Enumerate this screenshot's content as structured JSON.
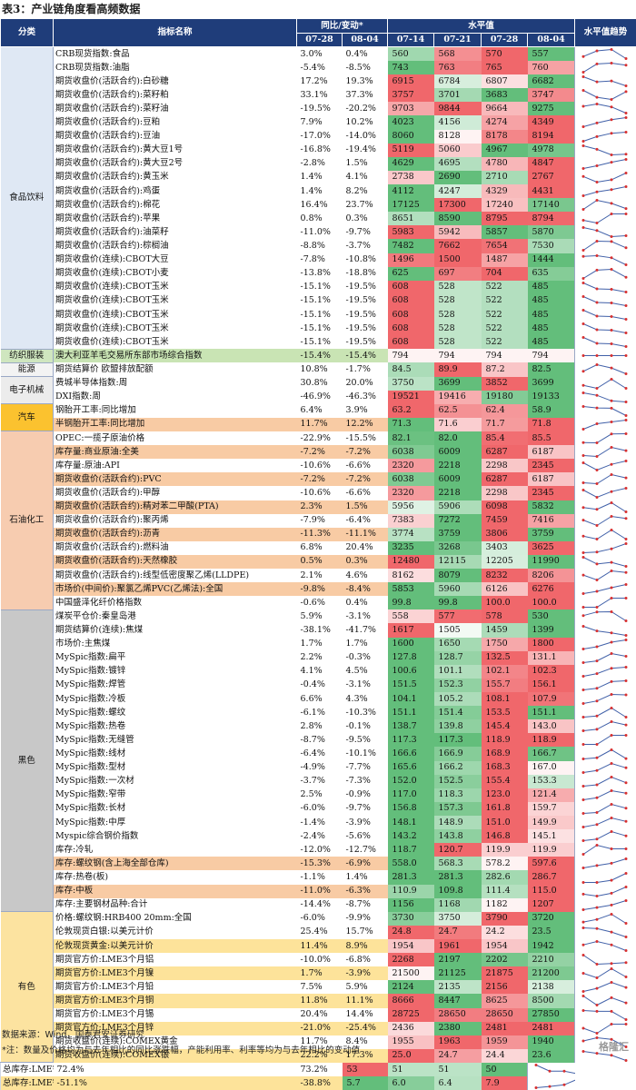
{
  "title": "表3：产业链角度看高频数据",
  "header": {
    "cat": "分类",
    "name": "指标名称",
    "yoy": "同比/变动*",
    "level": "水平值",
    "trend": "水平值趋势",
    "yoy_dates": [
      "07-28",
      "08-04"
    ],
    "level_dates": [
      "07-14",
      "07-21",
      "07-28",
      "08-04"
    ]
  },
  "colors": {
    "header_bg": "#1f3d7a",
    "hl_orange": "#f8cba4",
    "hl_yellow": "#fde39a",
    "hl_green": "#c9e4b4",
    "high_red": "#f0676b",
    "low_green": "#63be7b",
    "trend_line": "#4060a8",
    "trend_dot": "#d93030"
  },
  "categories": [
    {
      "name": "食品饮料",
      "rows": 22,
      "bg": "#dfe8f4"
    },
    {
      "name": "纺织服装",
      "rows": 1,
      "bg": "#cfe6bf"
    },
    {
      "name": "能源",
      "rows": 1,
      "bg": "#f3f3f3"
    },
    {
      "name": "电子机械",
      "rows": 2,
      "bg": "#ececec"
    },
    {
      "name": "汽车",
      "rows": 2,
      "bg": "#fbc22f"
    },
    {
      "name": "石油化工",
      "rows": 13,
      "bg": "#f7ccb0"
    },
    {
      "name": "黑色",
      "rows": 22,
      "bg": "#c8c8c8"
    },
    {
      "name": "有色",
      "rows": 11,
      "bg": "#fce3a0"
    }
  ],
  "rows": [
    {
      "name": "CRB现货指数:食品",
      "yoy": [
        "3.0%",
        "0.4%"
      ],
      "lv": [
        "560",
        "568",
        "570",
        "557"
      ]
    },
    {
      "name": "CRB现货指数:油脂",
      "yoy": [
        "-5.4%",
        "-8.5%"
      ],
      "lv": [
        "743",
        "763",
        "765",
        "760"
      ]
    },
    {
      "name": "期货收盘价(活跃合约):白砂糖",
      "yoy": [
        "17.2%",
        "19.3%"
      ],
      "lv": [
        "6915",
        "6784",
        "6807",
        "6682"
      ]
    },
    {
      "name": "期货收盘价(活跃合约):菜籽粕",
      "yoy": [
        "33.1%",
        "37.3%"
      ],
      "lv": [
        "3757",
        "3701",
        "3683",
        "3747"
      ]
    },
    {
      "name": "期货收盘价(活跃合约):菜籽油",
      "yoy": [
        "-19.5%",
        "-20.2%"
      ],
      "lv": [
        "9703",
        "9844",
        "9664",
        "9275"
      ]
    },
    {
      "name": "期货收盘价(活跃合约):豆粕",
      "yoy": [
        "7.9%",
        "10.2%"
      ],
      "lv": [
        "4023",
        "4156",
        "4274",
        "4349"
      ]
    },
    {
      "name": "期货收盘价(活跃合约):豆油",
      "yoy": [
        "-17.0%",
        "-14.0%"
      ],
      "lv": [
        "8060",
        "8128",
        "8178",
        "8194"
      ]
    },
    {
      "name": "期货收盘价(活跃合约):黄大豆1号",
      "yoy": [
        "-16.8%",
        "-19.4%"
      ],
      "lv": [
        "5119",
        "5060",
        "4967",
        "4978"
      ]
    },
    {
      "name": "期货收盘价(活跃合约):黄大豆2号",
      "yoy": [
        "-2.8%",
        "1.5%"
      ],
      "lv": [
        "4629",
        "4695",
        "4780",
        "4847"
      ]
    },
    {
      "name": "期货收盘价(活跃合约):黄玉米",
      "yoy": [
        "1.4%",
        "4.1%"
      ],
      "lv": [
        "2738",
        "2690",
        "2710",
        "2767"
      ]
    },
    {
      "name": "期货收盘价(活跃合约):鸡蛋",
      "yoy": [
        "1.4%",
        "8.2%"
      ],
      "lv": [
        "4112",
        "4247",
        "4329",
        "4431"
      ]
    },
    {
      "name": "期货收盘价(活跃合约):棉花",
      "yoy": [
        "16.4%",
        "23.7%"
      ],
      "lv": [
        "17125",
        "17300",
        "17240",
        "17140"
      ]
    },
    {
      "name": "期货收盘价(活跃合约):苹果",
      "yoy": [
        "0.8%",
        "0.3%"
      ],
      "lv": [
        "8651",
        "8590",
        "8795",
        "8794"
      ]
    },
    {
      "name": "期货收盘价(活跃合约):油菜籽",
      "yoy": [
        "-11.0%",
        "-9.7%"
      ],
      "lv": [
        "5983",
        "5942",
        "5857",
        "5870"
      ]
    },
    {
      "name": "期货收盘价(活跃合约):棕榈油",
      "yoy": [
        "-8.8%",
        "-3.7%"
      ],
      "lv": [
        "7482",
        "7662",
        "7654",
        "7530"
      ]
    },
    {
      "name": "期货收盘价(连续):CBOT大豆",
      "yoy": [
        "-7.8%",
        "-10.8%"
      ],
      "lv": [
        "1496",
        "1500",
        "1487",
        "1444"
      ]
    },
    {
      "name": "期货收盘价(连续):CBOT小麦",
      "yoy": [
        "-13.8%",
        "-18.8%"
      ],
      "lv": [
        "625",
        "697",
        "704",
        "635"
      ]
    },
    {
      "name": "期货收盘价(连续):CBOT玉米",
      "yoy": [
        "-15.1%",
        "-19.5%"
      ],
      "lv": [
        "608",
        "528",
        "522",
        "485"
      ]
    },
    {
      "name": "期货收盘价(连续):CBOT玉米",
      "yoy": [
        "-15.1%",
        "-19.5%"
      ],
      "lv": [
        "608",
        "528",
        "522",
        "485"
      ]
    },
    {
      "name": "期货收盘价(连续):CBOT玉米",
      "yoy": [
        "-15.1%",
        "-19.5%"
      ],
      "lv": [
        "608",
        "528",
        "522",
        "485"
      ]
    },
    {
      "name": "期货收盘价(连续):CBOT玉米",
      "yoy": [
        "-15.1%",
        "-19.5%"
      ],
      "lv": [
        "608",
        "528",
        "522",
        "485"
      ]
    },
    {
      "name": "期货收盘价(连续):CBOT玉米",
      "yoy": [
        "-15.1%",
        "-19.5%"
      ],
      "lv": [
        "608",
        "528",
        "522",
        "485"
      ]
    },
    {
      "name": "澳大利亚羊毛交易所东部市场综合指数",
      "yoy": [
        "-15.4%",
        "-15.4%"
      ],
      "lv": [
        "794",
        "794",
        "794",
        "794"
      ],
      "hl": "green"
    },
    {
      "name": "期货结算价 欧盟排放配额",
      "yoy": [
        "10.8%",
        "-1.7%"
      ],
      "lv": [
        "84.5",
        "89.9",
        "87.2",
        "82.5"
      ]
    },
    {
      "name": "费城半导体指数:周",
      "yoy": [
        "30.8%",
        "20.0%"
      ],
      "lv": [
        "3750",
        "3699",
        "3852",
        "3699"
      ]
    },
    {
      "name": "DXI指数:周",
      "yoy": [
        "-46.9%",
        "-46.3%"
      ],
      "lv": [
        "19521",
        "19416",
        "19180",
        "19133"
      ]
    },
    {
      "name": "钢胎开工率:同比增加",
      "yoy": [
        "6.4%",
        "3.9%"
      ],
      "lv": [
        "63.2",
        "62.5",
        "62.4",
        "58.9"
      ]
    },
    {
      "name": "半钢胎开工率:同比增加",
      "yoy": [
        "11.7%",
        "12.2%"
      ],
      "lv": [
        "71.3",
        "71.6",
        "71.7",
        "71.8"
      ],
      "hl": "orange"
    },
    {
      "name": "OPEC:一揽子原油价格",
      "yoy": [
        "-22.9%",
        "-15.5%"
      ],
      "lv": [
        "82.1",
        "82.0",
        "85.4",
        "85.5"
      ]
    },
    {
      "name": "库存量:商业原油:全美",
      "yoy": [
        "-7.2%",
        "-7.2%"
      ],
      "lv": [
        "6038",
        "6009",
        "6287",
        "6187"
      ],
      "hl": "orange"
    },
    {
      "name": "库存量:原油:API",
      "yoy": [
        "-10.6%",
        "-6.6%"
      ],
      "lv": [
        "2320",
        "2218",
        "2298",
        "2345"
      ]
    },
    {
      "name": "期货收盘价(活跃合约):PVC",
      "yoy": [
        "-7.2%",
        "-7.2%"
      ],
      "lv": [
        "6038",
        "6009",
        "6287",
        "6187"
      ],
      "hl": "orange"
    },
    {
      "name": "期货收盘价(活跃合约):甲醇",
      "yoy": [
        "-10.6%",
        "-6.6%"
      ],
      "lv": [
        "2320",
        "2218",
        "2298",
        "2345"
      ]
    },
    {
      "name": "期货收盘价(活跃合约):精对苯二甲酸(PTA)",
      "yoy": [
        "2.3%",
        "1.5%"
      ],
      "lv": [
        "5956",
        "5906",
        "6098",
        "5832"
      ],
      "hl": "orange"
    },
    {
      "name": "期货收盘价(活跃合约):聚丙烯",
      "yoy": [
        "-7.9%",
        "-6.4%"
      ],
      "lv": [
        "7383",
        "7272",
        "7459",
        "7416"
      ]
    },
    {
      "name": "期货收盘价(活跃合约):沥青",
      "yoy": [
        "-11.3%",
        "-11.1%"
      ],
      "lv": [
        "3774",
        "3759",
        "3806",
        "3759"
      ],
      "hl": "orange"
    },
    {
      "name": "期货收盘价(活跃合约):燃料油",
      "yoy": [
        "6.8%",
        "20.4%"
      ],
      "lv": [
        "3235",
        "3268",
        "3403",
        "3625"
      ]
    },
    {
      "name": "期货收盘价(活跃合约):天然橡胶",
      "yoy": [
        "0.5%",
        "0.3%"
      ],
      "lv": [
        "12480",
        "12115",
        "12205",
        "11990"
      ],
      "hl": "orange"
    },
    {
      "name": "期货收盘价(活跃合约):线型低密度聚乙烯(LLDPE)",
      "yoy": [
        "2.1%",
        "4.6%"
      ],
      "lv": [
        "8162",
        "8079",
        "8232",
        "8206"
      ]
    },
    {
      "name": "市场价(中间价):聚氯乙烯PVC(乙烯法):全国",
      "yoy": [
        "-9.8%",
        "-8.4%"
      ],
      "lv": [
        "5853",
        "5960",
        "6126",
        "6276"
      ],
      "hl": "orange"
    },
    {
      "name": "中国盛泽化纤价格指数",
      "yoy": [
        "-0.6%",
        "0.4%"
      ],
      "lv": [
        "99.8",
        "99.8",
        "100.0",
        "100.0"
      ]
    },
    {
      "name": "煤炭平仓价:秦皇岛港",
      "yoy": [
        "5.9%",
        "-3.1%"
      ],
      "lv": [
        "558",
        "577",
        "578",
        "530"
      ]
    },
    {
      "name": "期货结算价(连续):焦煤",
      "yoy": [
        "-38.1%",
        "-41.7%"
      ],
      "lv": [
        "1617",
        "1505",
        "1459",
        "1399"
      ]
    },
    {
      "name": "市场价:主焦煤",
      "yoy": [
        "1.7%",
        "1.7%"
      ],
      "lv": [
        "1600",
        "1650",
        "1750",
        "1800"
      ]
    },
    {
      "name": "MySpic指数:扁平",
      "yoy": [
        "2.2%",
        "-0.3%"
      ],
      "lv": [
        "127.8",
        "128.7",
        "132.5",
        "131.1"
      ]
    },
    {
      "name": "MySpic指数:镀锌",
      "yoy": [
        "4.1%",
        "4.5%"
      ],
      "lv": [
        "100.6",
        "101.1",
        "102.1",
        "102.3"
      ]
    },
    {
      "name": "MySpic指数:焊管",
      "yoy": [
        "-0.4%",
        "-3.1%"
      ],
      "lv": [
        "151.5",
        "152.3",
        "155.7",
        "156.1"
      ]
    },
    {
      "name": "MySpic指数:冷板",
      "yoy": [
        "6.6%",
        "4.3%"
      ],
      "lv": [
        "104.1",
        "105.2",
        "108.1",
        "107.9"
      ]
    },
    {
      "name": "MySpic指数:螺纹",
      "yoy": [
        "-6.1%",
        "-10.3%"
      ],
      "lv": [
        "151.1",
        "151.4",
        "153.5",
        "151.1"
      ]
    },
    {
      "name": "MySpic指数:热卷",
      "yoy": [
        "2.8%",
        "-0.1%"
      ],
      "lv": [
        "138.7",
        "139.8",
        "145.4",
        "143.0"
      ]
    },
    {
      "name": "MySpic指数:无缝管",
      "yoy": [
        "-8.7%",
        "-9.5%"
      ],
      "lv": [
        "117.3",
        "117.3",
        "118.9",
        "118.9"
      ]
    },
    {
      "name": "MySpic指数:线材",
      "yoy": [
        "-6.4%",
        "-10.1%"
      ],
      "lv": [
        "166.6",
        "166.9",
        "168.9",
        "166.7"
      ]
    },
    {
      "name": "MySpic指数:型材",
      "yoy": [
        "-4.9%",
        "-7.7%"
      ],
      "lv": [
        "165.6",
        "166.2",
        "168.3",
        "167.0"
      ]
    },
    {
      "name": "MySpic指数:一次材",
      "yoy": [
        "-3.7%",
        "-7.3%"
      ],
      "lv": [
        "152.0",
        "152.5",
        "155.4",
        "153.3"
      ]
    },
    {
      "name": "MySpic指数:窄带",
      "yoy": [
        "2.5%",
        "-0.9%"
      ],
      "lv": [
        "117.0",
        "118.3",
        "123.0",
        "121.4"
      ]
    },
    {
      "name": "MySpic指数:长材",
      "yoy": [
        "-6.0%",
        "-9.7%"
      ],
      "lv": [
        "156.8",
        "157.3",
        "161.8",
        "159.7"
      ]
    },
    {
      "name": "MySpic指数:中厚",
      "yoy": [
        "-1.4%",
        "-3.9%"
      ],
      "lv": [
        "148.1",
        "148.9",
        "151.0",
        "149.9"
      ]
    },
    {
      "name": "Myspic综合钢价指数",
      "yoy": [
        "-2.4%",
        "-5.6%"
      ],
      "lv": [
        "143.2",
        "143.8",
        "146.8",
        "145.1"
      ]
    },
    {
      "name": "库存:冷轧",
      "yoy": [
        "-12.0%",
        "-12.7%"
      ],
      "lv": [
        "118.7",
        "120.7",
        "119.9",
        "119.9"
      ]
    },
    {
      "name": "库存:螺纹钢(含上海全部仓库)",
      "yoy": [
        "-15.3%",
        "-6.9%"
      ],
      "lv": [
        "558.0",
        "568.3",
        "578.2",
        "597.6"
      ],
      "hl": "orange"
    },
    {
      "name": "库存:热卷(板)",
      "yoy": [
        "-1.1%",
        "1.4%"
      ],
      "lv": [
        "281.3",
        "281.3",
        "282.6",
        "286.7"
      ]
    },
    {
      "name": "库存:中板",
      "yoy": [
        "-11.0%",
        "-6.3%"
      ],
      "lv": [
        "110.9",
        "109.8",
        "111.4",
        "115.0"
      ],
      "hl": "orange"
    },
    {
      "name": "库存:主要钢材品种:合计",
      "yoy": [
        "-14.4%",
        "-8.7%"
      ],
      "lv": [
        "1156",
        "1168",
        "1182",
        "1207"
      ]
    },
    {
      "name": "价格:螺纹钢:HRB400 20mm:全国",
      "yoy": [
        "-6.0%",
        "-9.9%"
      ],
      "lv": [
        "3730",
        "3750",
        "3790",
        "3720"
      ]
    },
    {
      "name": "伦敦现货白银:以美元计价",
      "yoy": [
        "25.4%",
        "15.7%"
      ],
      "lv": [
        "24.8",
        "24.7",
        "24.2",
        "23.5"
      ]
    },
    {
      "name": "伦敦现货黄金:以美元计价",
      "yoy": [
        "11.4%",
        "8.9%"
      ],
      "lv": [
        "1954",
        "1961",
        "1954",
        "1942"
      ],
      "hl": "yellow"
    },
    {
      "name": "期货官方价:LME3个月铝",
      "yoy": [
        "-10.0%",
        "-6.8%"
      ],
      "lv": [
        "2268",
        "2197",
        "2202",
        "2210"
      ]
    },
    {
      "name": "期货官方价:LME3个月镍",
      "yoy": [
        "1.7%",
        "-3.9%"
      ],
      "lv": [
        "21500",
        "21125",
        "21875",
        "21200"
      ],
      "hl": "yellow"
    },
    {
      "name": "期货官方价:LME3个月铅",
      "yoy": [
        "7.5%",
        "5.9%"
      ],
      "lv": [
        "2124",
        "2135",
        "2156",
        "2138"
      ]
    },
    {
      "name": "期货官方价:LME3个月铜",
      "yoy": [
        "11.8%",
        "11.1%"
      ],
      "lv": [
        "8666",
        "8447",
        "8625",
        "8500"
      ],
      "hl": "yellow"
    },
    {
      "name": "期货官方价:LME3个月锡",
      "yoy": [
        "20.4%",
        "14.4%"
      ],
      "lv": [
        "28725",
        "28650",
        "28650",
        "27850"
      ]
    },
    {
      "name": "期货官方价:LME3个月锌",
      "yoy": [
        "-21.0%",
        "-25.4%"
      ],
      "lv": [
        "2436",
        "2380",
        "2481",
        "2481"
      ],
      "hl": "yellow"
    },
    {
      "name": "期货收盘价(连续):COMEX黄金",
      "yoy": [
        "11.7%",
        "8.4%"
      ],
      "lv": [
        "1955",
        "1963",
        "1959",
        "1940"
      ]
    },
    {
      "name": "期货收盘价(连续):COMEX银",
      "yoy": [
        "22.2%",
        "17.3%"
      ],
      "lv": [
        "25.0",
        "24.7",
        "24.4",
        "23.6"
      ],
      "hl": "yellow"
    },
    {
      "name": "总库存:LME铝:万吨",
      "yoy": [
        "72.4%",
        "73.2%"
      ],
      "lv": [
        "53",
        "51",
        "51",
        "50"
      ]
    },
    {
      "name": "总库存:LME铜:万吨",
      "yoy": [
        "-51.1%",
        "-38.8%"
      ],
      "lv": [
        "5.7",
        "6.0",
        "6.4",
        "7.9"
      ],
      "hl": "yellow"
    }
  ],
  "footer": {
    "source": "数据来源：Wind，国泰君安证券研究",
    "note": "*注：数量及价格均为与去年相比的同比涨跌幅，产能利用率、利率等均为与去年相比的变动值"
  },
  "watermark": "格隆汇"
}
